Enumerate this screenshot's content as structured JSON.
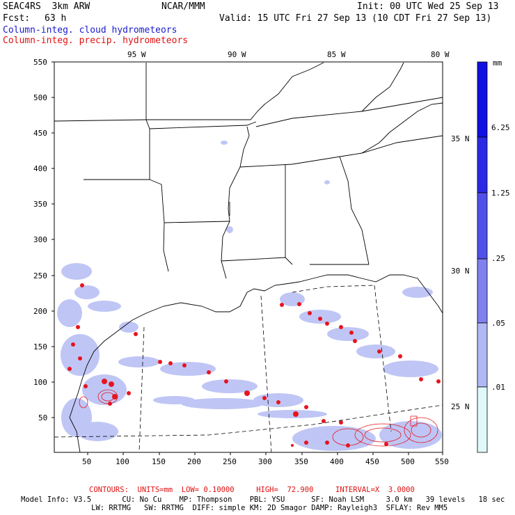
{
  "header": {
    "model": "SEAC4RS  3km ARW",
    "org": "NCAR/MMM",
    "init": "Init: 00 UTC Wed 25 Sep 13",
    "fcst_label": "Fcst:",
    "fcst_value": "63 h",
    "valid": "Valid: 15 UTC Fri 27 Sep 13 (10 CDT Fri 27 Sep 13)",
    "field_cloud": "Column-integ. cloud hydrometeors",
    "field_precip": "Column-integ. precip. hydrometeors"
  },
  "colors": {
    "cloud_text": "#1a1acc",
    "precip_text": "#e01010",
    "precip_contour": "#e8141e"
  },
  "map": {
    "top_lon_labels": [
      "95 W",
      "90 W",
      "85 W",
      "80 W"
    ],
    "right_lat_labels": [
      "35 N",
      "30 N",
      "25 N"
    ],
    "x_ticks": [
      "50",
      "100",
      "150",
      "200",
      "250",
      "300",
      "350",
      "400",
      "450",
      "500",
      "550"
    ],
    "y_ticks": [
      "550",
      "500",
      "450",
      "400",
      "350",
      "300",
      "250",
      "200",
      "150",
      "100",
      "50"
    ]
  },
  "colorbar": {
    "unit": "mm",
    "labels": [
      "6.25",
      "1.25",
      ".25",
      ".05",
      ".01"
    ],
    "colors": [
      "#1010e0",
      "#2a2ae6",
      "#5050ea",
      "#8080ee",
      "#b0b8f4",
      "#e0f8fa"
    ]
  },
  "footer": {
    "contours": "CONTOURS:  UNITS=mm  LOW= 0.10000     HIGH=  72.900     INTERVAL=X  3.0000",
    "line1": "Model Info: V3.5       CU: No Cu    MP: Thompson    PBL: YSU      SF: Noah LSM     3.0 km   39 levels   18 sec",
    "line2": "                LW: RRTMG   SW: RRTMG  DIFF: simple KM: 2D Smagor DAMP: Rayleigh3  SFLAY: Rev MM5"
  }
}
